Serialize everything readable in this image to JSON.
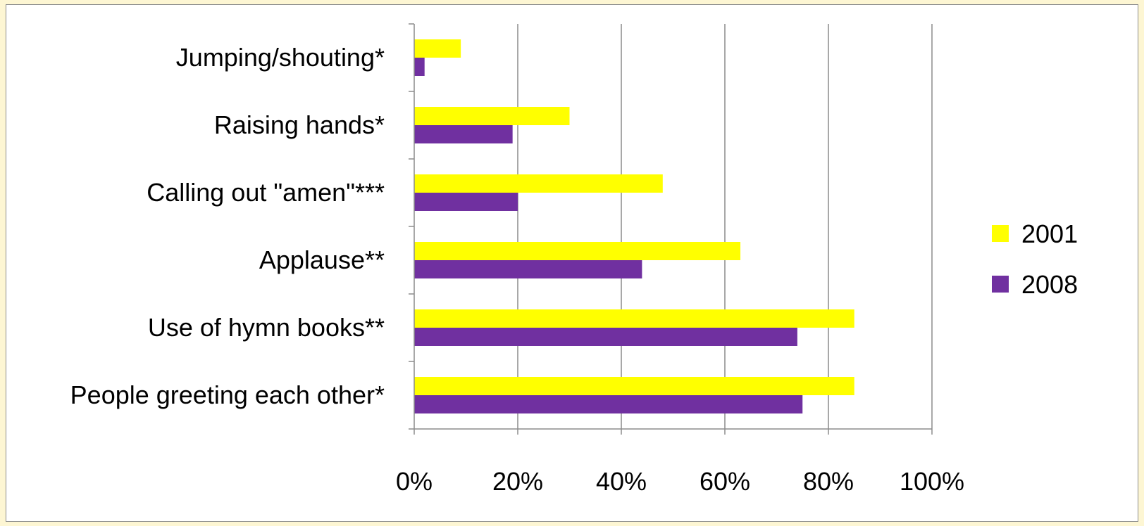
{
  "chart_data": {
    "type": "bar",
    "orientation": "horizontal",
    "categories": [
      "People greeting each other*",
      "Use of hymn books**",
      "Applause**",
      "Calling out \"amen\"***",
      "Raising hands*",
      "Jumping/shouting*"
    ],
    "series": [
      {
        "name": "2001",
        "color": "#ffff00",
        "values": [
          85,
          85,
          63,
          48,
          30,
          9
        ]
      },
      {
        "name": "2008",
        "color": "#7030a0",
        "values": [
          75,
          74,
          44,
          20,
          19,
          2
        ]
      }
    ],
    "xlim": [
      0,
      100
    ],
    "xticks": [
      "0%",
      "20%",
      "40%",
      "60%",
      "80%",
      "100%"
    ],
    "grid": true,
    "legend_position": "right"
  }
}
